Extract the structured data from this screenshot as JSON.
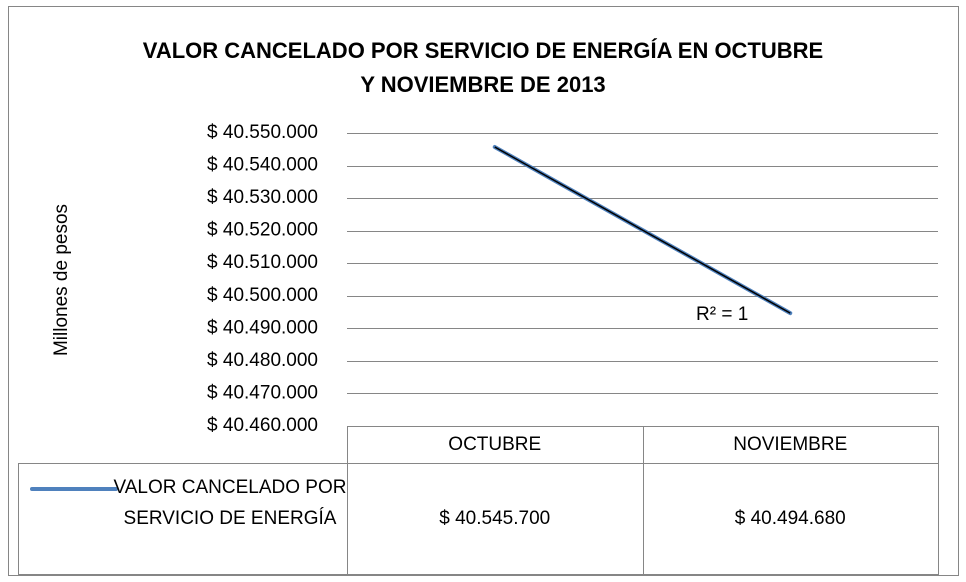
{
  "chart_data": {
    "type": "line",
    "title": "VALOR CANCELADO POR SERVICIO DE ENERGÍA EN OCTUBRE\nY NOVIEMBRE DE 2013",
    "ylabel": "Millones de pesos",
    "categories": [
      "OCTUBRE",
      "NOVIEMBRE"
    ],
    "series": [
      {
        "name": "VALOR CANCELADO POR SERVICIO DE ENERGÍA",
        "color": "#4f81bd",
        "values": [
          40545700,
          40494680
        ],
        "value_labels": [
          "$ 40.545.700",
          "$ 40.494.680"
        ]
      }
    ],
    "ylim": [
      40460000,
      40550000
    ],
    "yticks": [
      {
        "value": 40460000,
        "label": "$ 40.460.000"
      },
      {
        "value": 40470000,
        "label": "$ 40.470.000"
      },
      {
        "value": 40480000,
        "label": "$ 40.480.000"
      },
      {
        "value": 40490000,
        "label": "$ 40.490.000"
      },
      {
        "value": 40500000,
        "label": "$ 40.500.000"
      },
      {
        "value": 40510000,
        "label": "$ 40.510.000"
      },
      {
        "value": 40520000,
        "label": "$ 40.520.000"
      },
      {
        "value": 40530000,
        "label": "$ 40.530.000"
      },
      {
        "value": 40540000,
        "label": "$ 40.540.000"
      },
      {
        "value": 40550000,
        "label": "$ 40.550.000"
      }
    ],
    "grid": true,
    "trendline": {
      "color": "#000000",
      "label": "R² = 1"
    }
  }
}
